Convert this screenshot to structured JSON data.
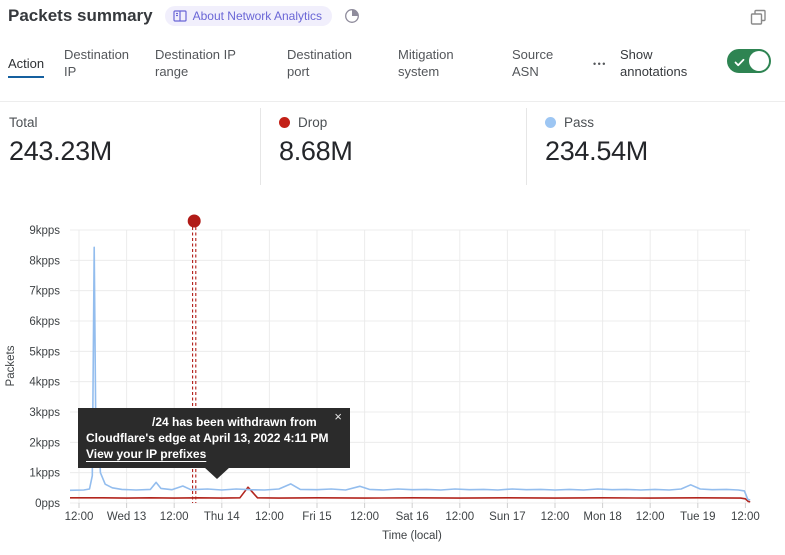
{
  "header": {
    "title": "Packets summary",
    "badge_label": "About Network Analytics",
    "close_label": "×"
  },
  "tabs": {
    "items": [
      {
        "label": "Action",
        "slug": "action",
        "active": true
      },
      {
        "label": "Destination IP",
        "slug": "destination-ip",
        "active": false
      },
      {
        "label": "Destination IP range",
        "slug": "destination-ip-range",
        "active": false
      },
      {
        "label": "Destination port",
        "slug": "destination-port",
        "active": false
      },
      {
        "label": "Mitigation system",
        "slug": "mitigation-system",
        "active": false
      },
      {
        "label": "Source ASN",
        "slug": "source-asn",
        "active": false
      }
    ],
    "more_label": "•••",
    "annotations_toggle": {
      "label": "Show annotations",
      "on": true
    }
  },
  "stats": [
    {
      "label": "Total",
      "value": "243.23M",
      "dot_color": null
    },
    {
      "label": "Drop",
      "value": "8.68M",
      "dot_color": "#c32017"
    },
    {
      "label": "Pass",
      "value": "234.54M",
      "dot_color": "#9dc6f3"
    }
  ],
  "colors": {
    "accent_blue": "#15609f",
    "toggle_green": "#2e8452",
    "pass_blue": "#93bdee",
    "drop_red": "#b3261e",
    "annotation_red": "#b11b17",
    "grid": "#ececec",
    "badge_purple": "#6a66d6"
  },
  "chart_data": {
    "type": "line",
    "title": "",
    "xlabel": "Time (local)",
    "ylabel": "Packets",
    "grid": true,
    "legend_position": "stats-row-above",
    "y_ticks": [
      "9kpps",
      "8kpps",
      "7kpps",
      "6kpps",
      "5kpps",
      "4kpps",
      "3kpps",
      "2kpps",
      "1kpps",
      "0pps"
    ],
    "ylim": [
      0,
      9
    ],
    "x_ticks": [
      "12:00",
      "Wed 13",
      "12:00",
      "Thu 14",
      "12:00",
      "Fri 15",
      "12:00",
      "Sat 16",
      "12:00",
      "Sun 17",
      "12:00",
      "Mon 18",
      "12:00",
      "Tue 19",
      "12:00"
    ],
    "series": [
      {
        "name": "Pass",
        "color": "#93bdee",
        "points": [
          [
            -0.19,
            0.42
          ],
          [
            0.1,
            0.43
          ],
          [
            0.22,
            0.46
          ],
          [
            0.28,
            0.9
          ],
          [
            0.32,
            8.43
          ],
          [
            0.36,
            1.3
          ],
          [
            0.4,
            2.9
          ],
          [
            0.45,
            1.0
          ],
          [
            0.55,
            0.62
          ],
          [
            0.7,
            0.5
          ],
          [
            0.9,
            0.45
          ],
          [
            1.2,
            0.43
          ],
          [
            1.5,
            0.45
          ],
          [
            1.62,
            0.68
          ],
          [
            1.72,
            0.48
          ],
          [
            1.95,
            0.44
          ],
          [
            2.18,
            0.56
          ],
          [
            2.35,
            0.44
          ],
          [
            2.7,
            0.46
          ],
          [
            3.0,
            0.43
          ],
          [
            3.3,
            0.46
          ],
          [
            3.6,
            0.44
          ],
          [
            3.9,
            0.43
          ],
          [
            4.2,
            0.46
          ],
          [
            4.45,
            0.63
          ],
          [
            4.65,
            0.45
          ],
          [
            5.0,
            0.44
          ],
          [
            5.3,
            0.46
          ],
          [
            5.6,
            0.43
          ],
          [
            5.9,
            0.55
          ],
          [
            6.1,
            0.45
          ],
          [
            6.4,
            0.43
          ],
          [
            6.7,
            0.46
          ],
          [
            7.0,
            0.44
          ],
          [
            7.3,
            0.45
          ],
          [
            7.6,
            0.43
          ],
          [
            7.9,
            0.46
          ],
          [
            8.2,
            0.44
          ],
          [
            8.5,
            0.45
          ],
          [
            8.8,
            0.43
          ],
          [
            9.1,
            0.46
          ],
          [
            9.4,
            0.44
          ],
          [
            9.7,
            0.45
          ],
          [
            10.0,
            0.43
          ],
          [
            10.3,
            0.45
          ],
          [
            10.6,
            0.43
          ],
          [
            10.9,
            0.46
          ],
          [
            11.2,
            0.44
          ],
          [
            11.5,
            0.45
          ],
          [
            11.8,
            0.43
          ],
          [
            12.1,
            0.45
          ],
          [
            12.4,
            0.43
          ],
          [
            12.65,
            0.46
          ],
          [
            12.85,
            0.6
          ],
          [
            13.05,
            0.46
          ],
          [
            13.3,
            0.44
          ],
          [
            13.6,
            0.45
          ],
          [
            13.85,
            0.43
          ],
          [
            13.98,
            0.4
          ],
          [
            14.05,
            0.12
          ],
          [
            14.1,
            0.1
          ]
        ]
      },
      {
        "name": "Drop",
        "color": "#b3261e",
        "points": [
          [
            -0.19,
            0.17
          ],
          [
            0.5,
            0.17
          ],
          [
            1.0,
            0.16
          ],
          [
            1.5,
            0.17
          ],
          [
            2.0,
            0.16
          ],
          [
            2.5,
            0.17
          ],
          [
            3.0,
            0.16
          ],
          [
            3.38,
            0.17
          ],
          [
            3.55,
            0.52
          ],
          [
            3.75,
            0.17
          ],
          [
            4.2,
            0.16
          ],
          [
            5.0,
            0.17
          ],
          [
            6.0,
            0.16
          ],
          [
            7.0,
            0.17
          ],
          [
            8.0,
            0.16
          ],
          [
            9.0,
            0.17
          ],
          [
            10.0,
            0.16
          ],
          [
            11.0,
            0.17
          ],
          [
            12.0,
            0.16
          ],
          [
            13.0,
            0.17
          ],
          [
            13.9,
            0.16
          ],
          [
            14.0,
            0.14
          ],
          [
            14.06,
            0.05
          ],
          [
            14.1,
            0.04
          ]
        ]
      }
    ],
    "annotation": {
      "x_tick_units": 2.42,
      "color": "#b11b17",
      "tooltip": {
        "line1": "/24 has been withdrawn from",
        "line2": "Cloudflare's edge at April 13, 2022 4:11 PM",
        "link_label": "View your IP prefixes"
      }
    }
  }
}
